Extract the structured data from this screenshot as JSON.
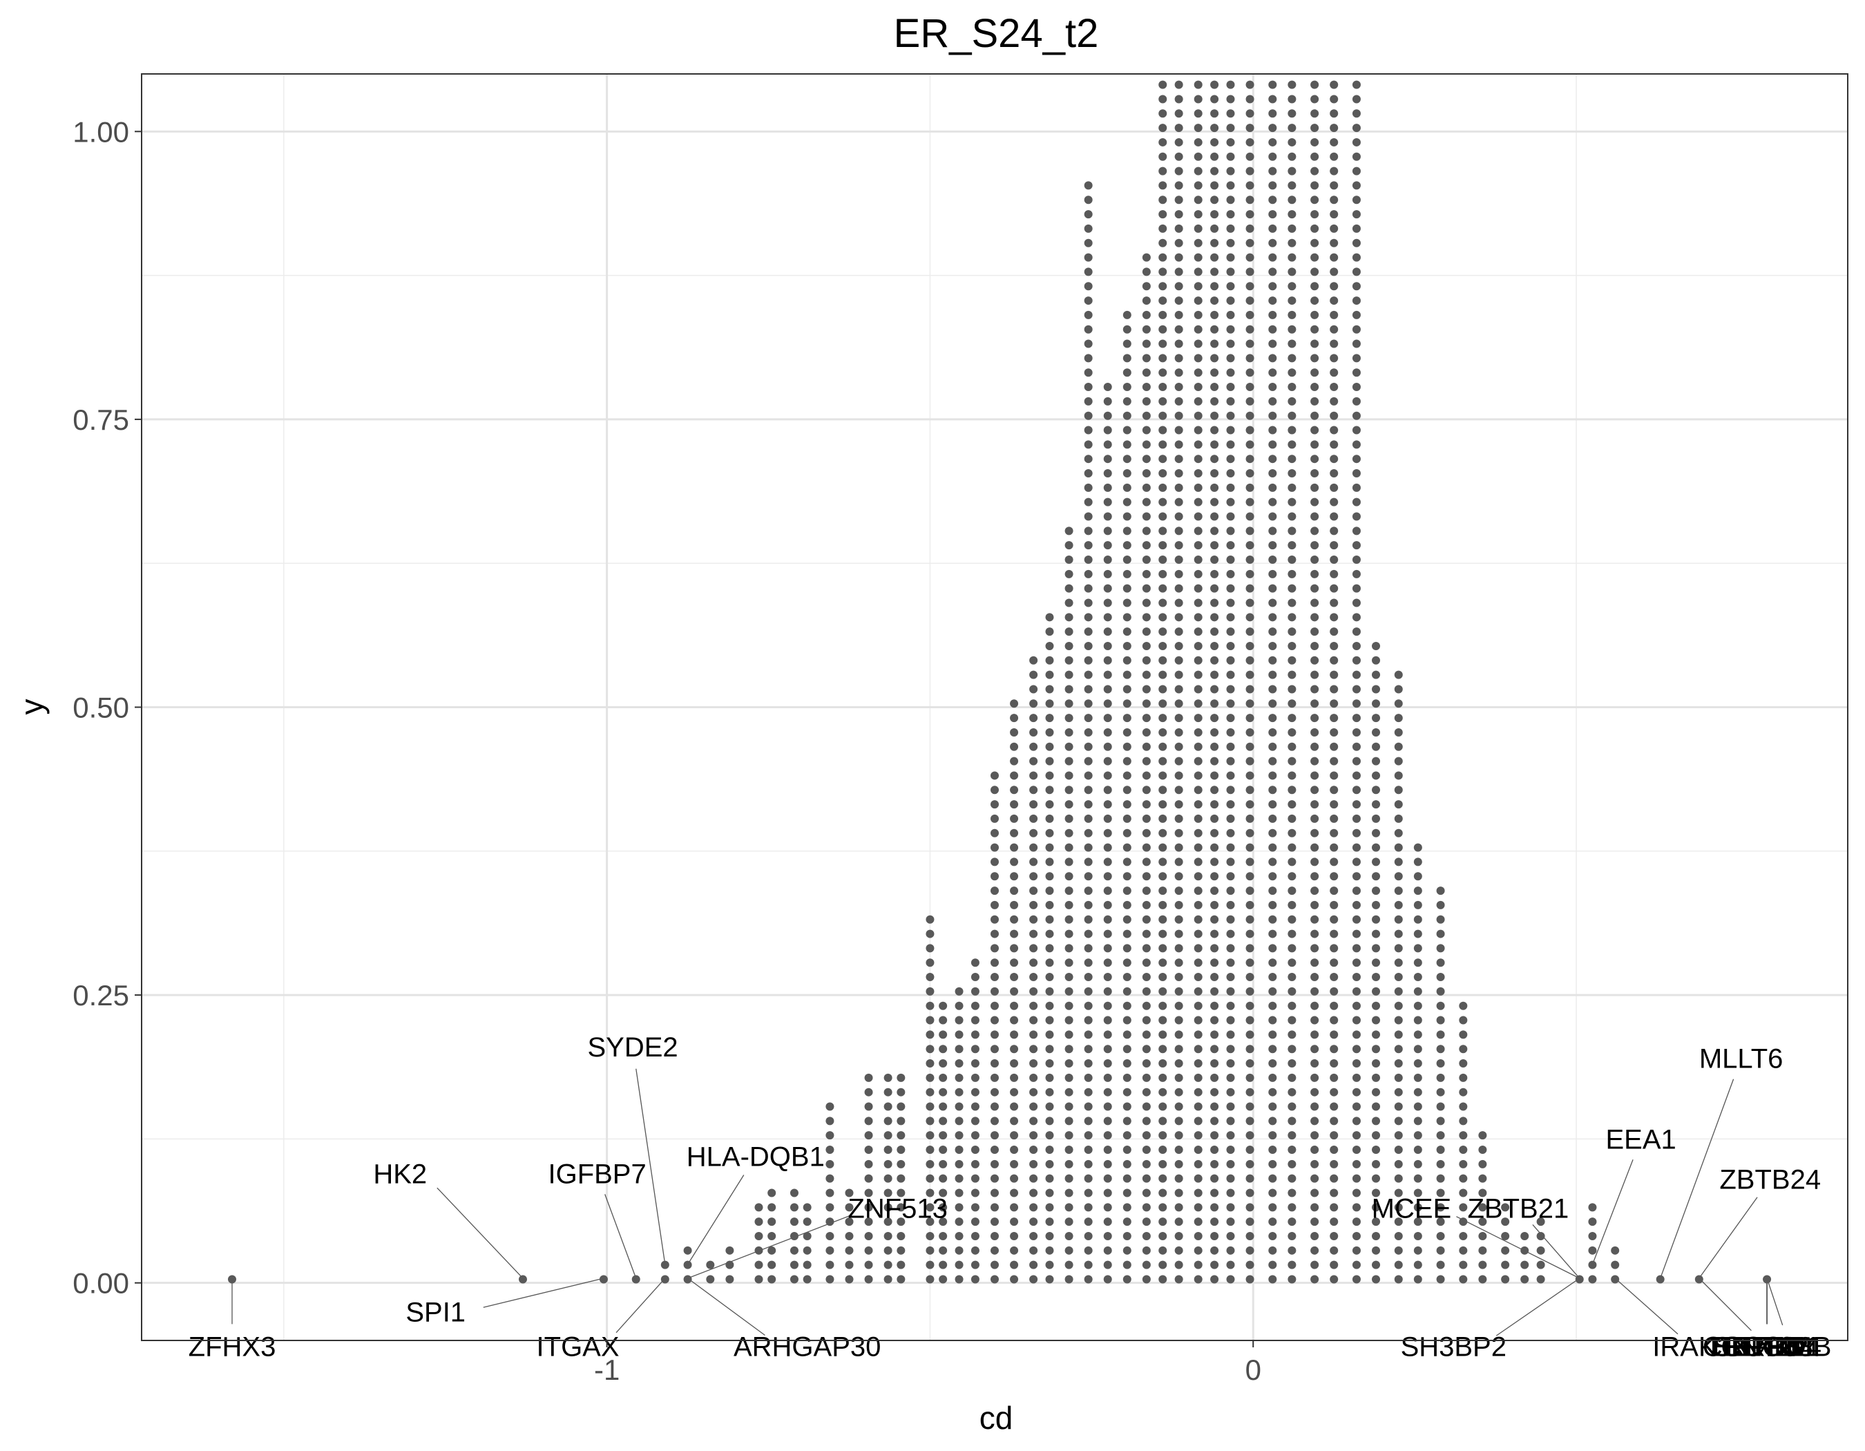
{
  "chart_data": {
    "type": "scatter",
    "subtype": "dotplot",
    "title": "ER_S24_t2",
    "xlabel": "cd",
    "ylabel": "y",
    "xlim": [
      -1.72,
      0.92
    ],
    "ylim": [
      -0.05,
      1.05
    ],
    "x_ticks": [
      {
        "value": -1,
        "label": "-1"
      },
      {
        "value": 0,
        "label": "0"
      }
    ],
    "y_ticks": [
      {
        "value": 0,
        "label": "0.00"
      },
      {
        "value": 0.25,
        "label": "0.25"
      },
      {
        "value": 0.5,
        "label": "0.50"
      },
      {
        "value": 0.75,
        "label": "0.75"
      },
      {
        "value": 1,
        "label": "1.00"
      }
    ],
    "grid": true,
    "dot_color": "#595959",
    "dot_step": 0.0125,
    "stacks": [
      {
        "x": -1.58,
        "count": 1
      },
      {
        "x": -1.13,
        "count": 1
      },
      {
        "x": -1.005,
        "count": 1
      },
      {
        "x": -0.955,
        "count": 1
      },
      {
        "x": -0.91,
        "count": 2
      },
      {
        "x": -0.875,
        "count": 3
      },
      {
        "x": -0.84,
        "count": 2
      },
      {
        "x": -0.81,
        "count": 3
      },
      {
        "x": -0.765,
        "count": 6
      },
      {
        "x": -0.745,
        "count": 7
      },
      {
        "x": -0.71,
        "count": 7
      },
      {
        "x": -0.69,
        "count": 6
      },
      {
        "x": -0.655,
        "count": 13
      },
      {
        "x": -0.625,
        "count": 7
      },
      {
        "x": -0.595,
        "count": 15
      },
      {
        "x": -0.565,
        "count": 15
      },
      {
        "x": -0.545,
        "count": 15
      },
      {
        "x": -0.5,
        "count": 26
      },
      {
        "x": -0.48,
        "count": 20
      },
      {
        "x": -0.455,
        "count": 21
      },
      {
        "x": -0.43,
        "count": 23
      },
      {
        "x": -0.4,
        "count": 36
      },
      {
        "x": -0.37,
        "count": 41
      },
      {
        "x": -0.34,
        "count": 44
      },
      {
        "x": -0.315,
        "count": 47
      },
      {
        "x": -0.285,
        "count": 53
      },
      {
        "x": -0.255,
        "count": 77
      },
      {
        "x": -0.225,
        "count": 63
      },
      {
        "x": -0.195,
        "count": 68
      },
      {
        "x": -0.165,
        "count": 72
      },
      {
        "x": -0.14,
        "count": 84
      },
      {
        "x": -0.115,
        "count": 84
      },
      {
        "x": -0.085,
        "count": 84
      },
      {
        "x": -0.06,
        "count": 84
      },
      {
        "x": -0.035,
        "count": 84
      },
      {
        "x": -0.005,
        "count": 84
      },
      {
        "x": 0.03,
        "count": 84
      },
      {
        "x": 0.06,
        "count": 84
      },
      {
        "x": 0.095,
        "count": 84
      },
      {
        "x": 0.125,
        "count": 84
      },
      {
        "x": 0.16,
        "count": 84
      },
      {
        "x": 0.19,
        "count": 45
      },
      {
        "x": 0.225,
        "count": 43
      },
      {
        "x": 0.255,
        "count": 31
      },
      {
        "x": 0.29,
        "count": 28
      },
      {
        "x": 0.325,
        "count": 20
      },
      {
        "x": 0.355,
        "count": 11
      },
      {
        "x": 0.39,
        "count": 6
      },
      {
        "x": 0.42,
        "count": 4
      },
      {
        "x": 0.445,
        "count": 5
      },
      {
        "x": 0.505,
        "count": 1
      },
      {
        "x": 0.525,
        "count": 6
      },
      {
        "x": 0.56,
        "count": 3
      },
      {
        "x": 0.63,
        "count": 1
      },
      {
        "x": 0.69,
        "count": 1
      },
      {
        "x": 0.795,
        "count": 1
      }
    ],
    "annotations": [
      {
        "label": "ZFHX3",
        "x": -1.58,
        "y": 0.0,
        "text_x": -1.58,
        "text_y": -0.055
      },
      {
        "label": "HK2",
        "x": -1.13,
        "y": 0.004,
        "text_x": -1.32,
        "text_y": 0.095
      },
      {
        "label": "SPI1",
        "x": -1.005,
        "y": 0.004,
        "text_x": -1.265,
        "text_y": -0.025
      },
      {
        "label": "IGFBP7",
        "x": -0.955,
        "y": 0.004,
        "text_x": -1.015,
        "text_y": 0.095
      },
      {
        "label": "ITGAX",
        "x": -0.91,
        "y": 0.004,
        "text_x": -1.045,
        "text_y": -0.055
      },
      {
        "label": "SYDE2",
        "x": -0.91,
        "y": 0.016,
        "text_x": -0.96,
        "text_y": 0.205
      },
      {
        "label": "HLA-DQB1",
        "x": -0.875,
        "y": 0.016,
        "text_x": -0.77,
        "text_y": 0.11
      },
      {
        "label": "ZNF513",
        "x": -0.875,
        "y": 0.004,
        "text_x": -0.55,
        "text_y": 0.065
      },
      {
        "label": "ARHGAP30",
        "x": -0.875,
        "y": 0.004,
        "text_x": -0.69,
        "text_y": -0.055
      },
      {
        "label": "MCEE",
        "x": 0.505,
        "y": 0.004,
        "text_x": 0.245,
        "text_y": 0.065
      },
      {
        "label": "ZBTB21",
        "x": 0.505,
        "y": 0.004,
        "text_x": 0.41,
        "text_y": 0.065
      },
      {
        "label": "SH3BP2",
        "x": 0.505,
        "y": 0.004,
        "text_x": 0.31,
        "text_y": -0.055
      },
      {
        "label": "EEA1",
        "x": 0.525,
        "y": 0.016,
        "text_x": 0.6,
        "text_y": 0.125
      },
      {
        "label": "IRAK1BP1",
        "x": 0.56,
        "y": 0.004,
        "text_x": 0.72,
        "text_y": -0.055
      },
      {
        "label": "MLLT6",
        "x": 0.63,
        "y": 0.004,
        "text_x": 0.755,
        "text_y": 0.195
      },
      {
        "label": "ENTPD4",
        "x": 0.69,
        "y": 0.004,
        "text_x": 0.795,
        "text_y": -0.055
      },
      {
        "label": "ZBTB24",
        "x": 0.69,
        "y": 0.004,
        "text_x": 0.8,
        "text_y": 0.09
      },
      {
        "label": "LRRFIP1",
        "x": 0.795,
        "y": 0.004,
        "text_x": 0.795,
        "text_y": -0.055
      },
      {
        "label": "CCDC88B",
        "x": 0.795,
        "y": 0.004,
        "text_x": 0.795,
        "text_y": -0.055
      },
      {
        "label": "CNTN4",
        "x": 0.795,
        "y": 0.004,
        "text_x": 0.795,
        "text_y": -0.055
      },
      {
        "label": "SPTBN1",
        "x": 0.795,
        "y": 0.004,
        "text_x": 0.795,
        "text_y": -0.055
      },
      {
        "label": "ECT2L",
        "x": 0.795,
        "y": 0.004,
        "text_x": 0.795,
        "text_y": -0.055
      },
      {
        "label": "XKL1",
        "x": 0.795,
        "y": 0.004,
        "text_x": 0.83,
        "text_y": -0.055
      }
    ]
  }
}
